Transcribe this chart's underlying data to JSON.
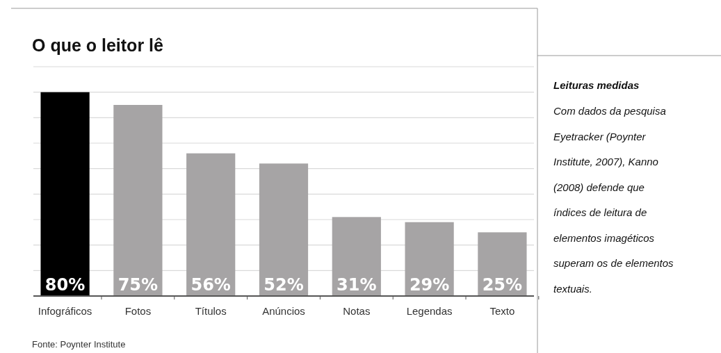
{
  "chart_data": {
    "type": "bar",
    "title": "O que o leitor lê",
    "categories": [
      "Infográficos",
      "Fotos",
      "Títulos",
      "Anúncios",
      "Notas",
      "Legendas",
      "Texto"
    ],
    "values": [
      80,
      75,
      56,
      52,
      31,
      29,
      25
    ],
    "colors": [
      "#000000",
      "#a6a4a5",
      "#a6a4a5",
      "#a6a4a5",
      "#a6a4a5",
      "#a6a4a5",
      "#a6a4a5"
    ],
    "value_labels": [
      "80%",
      "75%",
      "56%",
      "52%",
      "31%",
      "29%",
      "25%"
    ],
    "ylim": [
      0,
      90
    ],
    "yticks": [
      {
        "value": 0,
        "label": null
      },
      {
        "value": 10,
        "label": null
      },
      {
        "value": 20,
        "label": null
      },
      {
        "value": 30,
        "label": null
      },
      {
        "value": 40,
        "label": null
      },
      {
        "value": 50,
        "label": null
      },
      {
        "value": 60,
        "label": null
      },
      {
        "value": 70,
        "label": null
      },
      {
        "value": 80,
        "label": null
      },
      {
        "value": 90,
        "label": null
      }
    ],
    "grid": "y",
    "annotations": [
      "Fonte: Poynter Institute",
      "Leituras medidas",
      "Com dados da pesquisa Eyetracker (Poynter Institute, 2007), Kanno (2008) defende que índices de leitura de elementos imagéticos superam os de elementos textuais."
    ]
  }
}
